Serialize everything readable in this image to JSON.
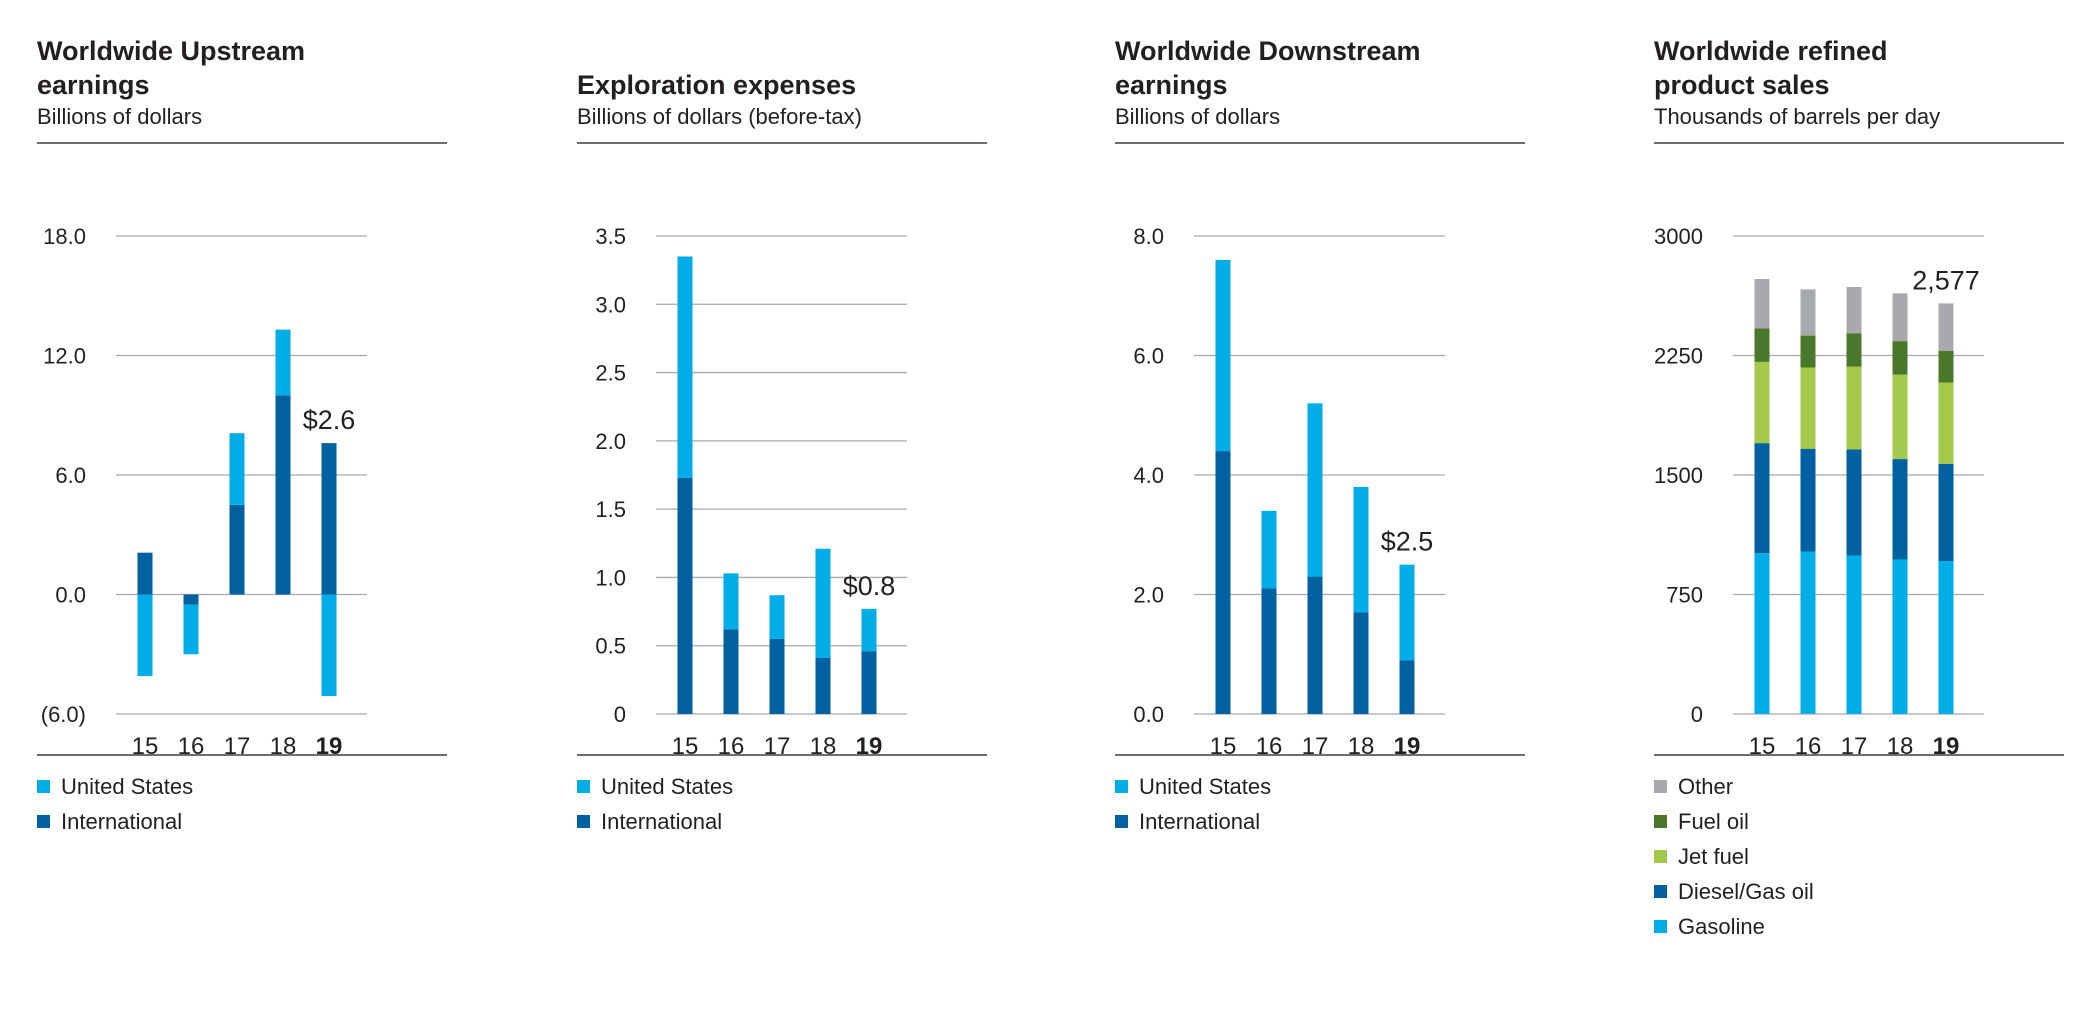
{
  "colors": {
    "us": "#00ade6",
    "intl": "#0061a0",
    "other": "#a7a9ac",
    "fuel_oil": "#4a7729",
    "jet_fuel": "#a3c94a",
    "diesel": "#0061a0",
    "gasoline": "#00ade6",
    "grid": "#a7a9ac"
  },
  "chart_data": [
    {
      "type": "bar",
      "stacked": true,
      "title_lines": [
        "Worldwide Upstream",
        "earnings"
      ],
      "subtitle": "Billions of dollars",
      "categories": [
        "15",
        "16",
        "17",
        "18",
        "19"
      ],
      "highlight_category": "19",
      "ylim": [
        -6,
        18
      ],
      "yticks": [
        18,
        12,
        6,
        0,
        -6
      ],
      "ytick_labels": [
        "18.0",
        "12.0",
        "6.0",
        "0.0",
        "(6.0)"
      ],
      "series": [
        {
          "name": "United States",
          "color_key": "us",
          "values": [
            -4.1,
            -2.5,
            3.6,
            3.3,
            -5.1
          ]
        },
        {
          "name": "International",
          "color_key": "intl",
          "values": [
            2.1,
            -0.5,
            4.5,
            10.0,
            7.6
          ]
        }
      ],
      "stack_order": [
        "International",
        "United States"
      ],
      "annotation": {
        "text": "$2.6",
        "category": "19"
      },
      "legend": [
        "United States",
        "International"
      ]
    },
    {
      "type": "bar",
      "stacked": true,
      "title_lines": [
        "Exploration expenses"
      ],
      "subtitle": "Billions of dollars (before-tax)",
      "categories": [
        "15",
        "16",
        "17",
        "18",
        "19"
      ],
      "highlight_category": "19",
      "ylim": [
        0,
        3.5
      ],
      "yticks": [
        3.5,
        3.0,
        2.5,
        2.0,
        1.5,
        1.0,
        0.5,
        0
      ],
      "ytick_labels": [
        "3.5",
        "3.0",
        "2.5",
        "2.0",
        "1.5",
        "1.0",
        "0.5",
        "0"
      ],
      "series": [
        {
          "name": "United States",
          "color_key": "us",
          "values": [
            1.62,
            0.41,
            0.32,
            0.8,
            0.31
          ]
        },
        {
          "name": "International",
          "color_key": "intl",
          "values": [
            1.73,
            0.62,
            0.55,
            0.41,
            0.46
          ]
        }
      ],
      "stack_order": [
        "International",
        "United States"
      ],
      "annotation": {
        "text": "$0.8",
        "category": "19"
      },
      "legend": [
        "United States",
        "International"
      ]
    },
    {
      "type": "bar",
      "stacked": true,
      "title_lines": [
        "Worldwide Downstream",
        "earnings"
      ],
      "subtitle": "Billions of dollars",
      "categories": [
        "15",
        "16",
        "17",
        "18",
        "19"
      ],
      "highlight_category": "19",
      "ylim": [
        0,
        8
      ],
      "yticks": [
        8,
        6,
        4,
        2,
        0
      ],
      "ytick_labels": [
        "8.0",
        "6.0",
        "4.0",
        "2.0",
        "0.0"
      ],
      "series": [
        {
          "name": "United States",
          "color_key": "us",
          "values": [
            3.2,
            1.3,
            2.9,
            2.1,
            1.6
          ]
        },
        {
          "name": "International",
          "color_key": "intl",
          "values": [
            4.4,
            2.1,
            2.3,
            1.7,
            0.9
          ]
        }
      ],
      "stack_order": [
        "International",
        "United States"
      ],
      "annotation": {
        "text": "$2.5",
        "category": "19"
      },
      "legend": [
        "United States",
        "International"
      ]
    },
    {
      "type": "bar",
      "stacked": true,
      "title_lines": [
        "Worldwide refined",
        "product sales"
      ],
      "subtitle": "Thousands of barrels per day",
      "categories": [
        "15",
        "16",
        "17",
        "18",
        "19"
      ],
      "highlight_category": "19",
      "ylim": [
        0,
        3000
      ],
      "yticks": [
        3000,
        2250,
        1500,
        750,
        0
      ],
      "ytick_labels": [
        "3000",
        "2250",
        "1500",
        "750",
        "0"
      ],
      "series": [
        {
          "name": "Gasoline",
          "color_key": "gasoline",
          "values": [
            1010,
            1020,
            995,
            970,
            960
          ]
        },
        {
          "name": "Diesel/Gas oil",
          "color_key": "diesel",
          "values": [
            690,
            645,
            665,
            630,
            610
          ]
        },
        {
          "name": "Jet fuel",
          "color_key": "jet_fuel",
          "values": [
            510,
            510,
            520,
            530,
            510
          ]
        },
        {
          "name": "Fuel oil",
          "color_key": "fuel_oil",
          "values": [
            210,
            200,
            210,
            210,
            200
          ]
        },
        {
          "name": "Other",
          "color_key": "other",
          "values": [
            310,
            290,
            290,
            300,
            297
          ]
        }
      ],
      "stack_order": [
        "Gasoline",
        "Diesel/Gas oil",
        "Jet fuel",
        "Fuel oil",
        "Other"
      ],
      "annotation": {
        "text": "2,577",
        "category": "19"
      },
      "legend": [
        "Other",
        "Fuel oil",
        "Jet fuel",
        "Diesel/Gas oil",
        "Gasoline"
      ]
    }
  ]
}
